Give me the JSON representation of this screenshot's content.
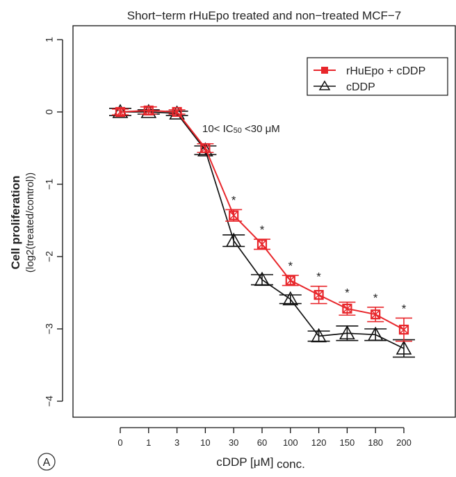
{
  "colors": {
    "red": "#e8262b",
    "black": "#111111",
    "axis": "#111111"
  },
  "chart_data": {
    "type": "line",
    "title": "Short−term rHuEpo treated and non−treated MCF−7",
    "ylabel_main": "Cell proliferation",
    "ylabel_sub": "(log2(treated/control))",
    "xlabel_main": "cDDP [μM]",
    "xlabel_sub": "conc.",
    "panel_label": "A",
    "annotation_prefix": "10< IC",
    "annotation_sub": "50",
    "annotation_suffix": " <30 μM",
    "categories": [
      "0",
      "1",
      "3",
      "10",
      "30",
      "60",
      "100",
      "120",
      "150",
      "180",
      "200"
    ],
    "yticks": [
      "1",
      "0",
      "−1",
      "−2",
      "−3",
      "−4"
    ],
    "ylim": [
      -4.25,
      1.35
    ],
    "significance_marker": "*",
    "legend_position": "top-right",
    "series": [
      {
        "name": "rHuEpo + cDDP",
        "color": "#e8262b",
        "marker": "square",
        "values": [
          0.0,
          0.02,
          0.0,
          -0.5,
          -1.43,
          -1.83,
          -2.33,
          -2.53,
          -2.72,
          -2.8,
          -3.01
        ],
        "errors": [
          0.04,
          0.05,
          0.03,
          0.06,
          0.08,
          0.07,
          0.07,
          0.12,
          0.09,
          0.1,
          0.16
        ],
        "significant": [
          false,
          false,
          false,
          false,
          true,
          true,
          true,
          true,
          true,
          true,
          true
        ]
      },
      {
        "name": "cDDP",
        "color": "#111111",
        "marker": "triangle",
        "values": [
          0.0,
          0.0,
          -0.02,
          -0.53,
          -1.78,
          -2.32,
          -2.59,
          -3.1,
          -3.06,
          -3.08,
          -3.27
        ],
        "errors": [
          0.05,
          0.03,
          0.03,
          0.06,
          0.08,
          0.07,
          0.06,
          0.07,
          0.1,
          0.08,
          0.12
        ]
      }
    ]
  }
}
